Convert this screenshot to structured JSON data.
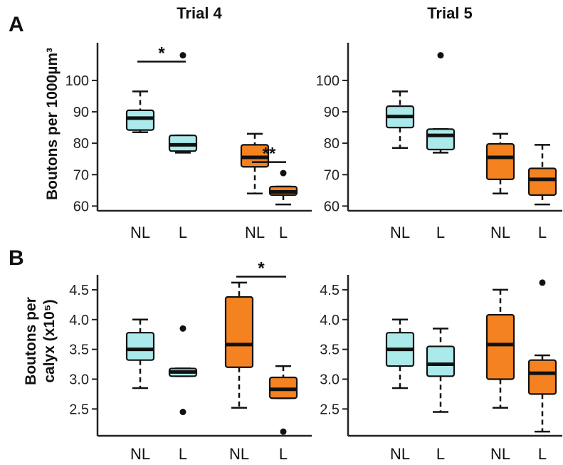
{
  "panel_letters": [
    "A",
    "B"
  ],
  "colors": {
    "NL": "#aaeaea",
    "L_light": "#aaeaea",
    "orange": "#f58220"
  },
  "chart_data": [
    {
      "type": "box",
      "panel": "A",
      "title": "Trial 4",
      "ylabel": "Boutons per 1000µm³",
      "ylim": [
        58.5,
        112
      ],
      "yticks": [
        60,
        70,
        80,
        90,
        100
      ],
      "categories": [
        "NL",
        "L",
        "NL",
        "L"
      ],
      "boxes": [
        {
          "label": "NL",
          "color": "cyan",
          "whislo": 83.5,
          "q1": 84.2,
          "med": 88.0,
          "q3": 90.5,
          "whishi": 96.5,
          "fliers": []
        },
        {
          "label": "L",
          "color": "cyan",
          "whislo": 77.0,
          "q1": 77.5,
          "med": 79.5,
          "q3": 82.5,
          "whishi": 82.5,
          "fliers": [
            108
          ]
        },
        {
          "label": "NL",
          "color": "orange",
          "whislo": 64.0,
          "q1": 72.5,
          "med": 75.5,
          "q3": 79.5,
          "whishi": 83.0,
          "fliers": []
        },
        {
          "label": "L",
          "color": "orange",
          "whislo": 60.5,
          "q1": 63.5,
          "med": 64.5,
          "q3": 66.2,
          "whishi": 66.2,
          "fliers": [
            70.5
          ]
        }
      ],
      "significance": [
        {
          "from": 0,
          "to": 1,
          "label": "*",
          "y": 106
        },
        {
          "from": 2,
          "to": 3,
          "label": "**",
          "y": 74
        }
      ]
    },
    {
      "type": "box",
      "panel": "A",
      "title": "Trial 5",
      "ylabel": "",
      "ylim": [
        58.5,
        112
      ],
      "yticks": [
        60,
        70,
        80,
        90,
        100
      ],
      "categories": [
        "NL",
        "L",
        "NL",
        "L"
      ],
      "boxes": [
        {
          "label": "NL",
          "color": "cyan",
          "whislo": 78.5,
          "q1": 85.0,
          "med": 88.5,
          "q3": 91.8,
          "whishi": 96.5,
          "fliers": []
        },
        {
          "label": "L",
          "color": "cyan",
          "whislo": 77.0,
          "q1": 78.0,
          "med": 82.5,
          "q3": 84.5,
          "whishi": 84.5,
          "fliers": [
            108
          ]
        },
        {
          "label": "NL",
          "color": "orange",
          "whislo": 64.0,
          "q1": 68.5,
          "med": 75.5,
          "q3": 79.8,
          "whishi": 83.0,
          "fliers": []
        },
        {
          "label": "L",
          "color": "orange",
          "whislo": 60.5,
          "q1": 63.5,
          "med": 68.5,
          "q3": 72.0,
          "whishi": 79.5,
          "fliers": []
        }
      ],
      "significance": []
    },
    {
      "type": "box",
      "panel": "B",
      "title": "",
      "ylabel": "Boutons per calyx (x10⁵)",
      "ylabel_lines": [
        "Boutons per",
        "calyx (x10⁵)"
      ],
      "ylim": [
        2.05,
        4.75
      ],
      "yticks": [
        "2.5",
        "3.0",
        "3.5",
        "4.0",
        "4.5"
      ],
      "categories": [
        "NL",
        "L",
        "NL",
        "L"
      ],
      "boxes": [
        {
          "label": "NL",
          "color": "cyan",
          "whislo": 2.85,
          "q1": 3.32,
          "med": 3.5,
          "q3": 3.78,
          "whishi": 4.0,
          "fliers": []
        },
        {
          "label": "L",
          "color": "cyan",
          "whislo": 3.05,
          "q1": 3.05,
          "med": 3.12,
          "q3": 3.18,
          "whishi": 3.18,
          "fliers": [
            3.85,
            2.45
          ]
        },
        {
          "label": "NL",
          "color": "orange",
          "whislo": 2.52,
          "q1": 3.2,
          "med": 3.58,
          "q3": 4.38,
          "whishi": 4.62,
          "fliers": []
        },
        {
          "label": "L",
          "color": "orange",
          "whislo": 2.68,
          "q1": 2.68,
          "med": 2.83,
          "q3": 3.03,
          "whishi": 3.22,
          "fliers": [
            2.12
          ]
        }
      ],
      "significance": [
        {
          "from": 2,
          "to": 3,
          "label": "*",
          "y": 4.72
        }
      ]
    },
    {
      "type": "box",
      "panel": "B",
      "title": "",
      "ylabel": "",
      "ylim": [
        2.05,
        4.75
      ],
      "yticks": [
        "2.5",
        "3.0",
        "3.5",
        "4.0",
        "4.5"
      ],
      "categories": [
        "NL",
        "L",
        "NL",
        "L"
      ],
      "boxes": [
        {
          "label": "NL",
          "color": "cyan",
          "whislo": 2.85,
          "q1": 3.22,
          "med": 3.5,
          "q3": 3.78,
          "whishi": 4.0,
          "fliers": []
        },
        {
          "label": "L",
          "color": "cyan",
          "whislo": 2.45,
          "q1": 3.05,
          "med": 3.25,
          "q3": 3.55,
          "whishi": 3.85,
          "fliers": []
        },
        {
          "label": "NL",
          "color": "orange",
          "whislo": 2.52,
          "q1": 3.0,
          "med": 3.58,
          "q3": 4.08,
          "whishi": 4.5,
          "fliers": []
        },
        {
          "label": "L",
          "color": "orange",
          "whislo": 2.12,
          "q1": 2.75,
          "med": 3.1,
          "q3": 3.32,
          "whishi": 3.4,
          "fliers": [
            4.62
          ]
        }
      ],
      "significance": []
    }
  ]
}
